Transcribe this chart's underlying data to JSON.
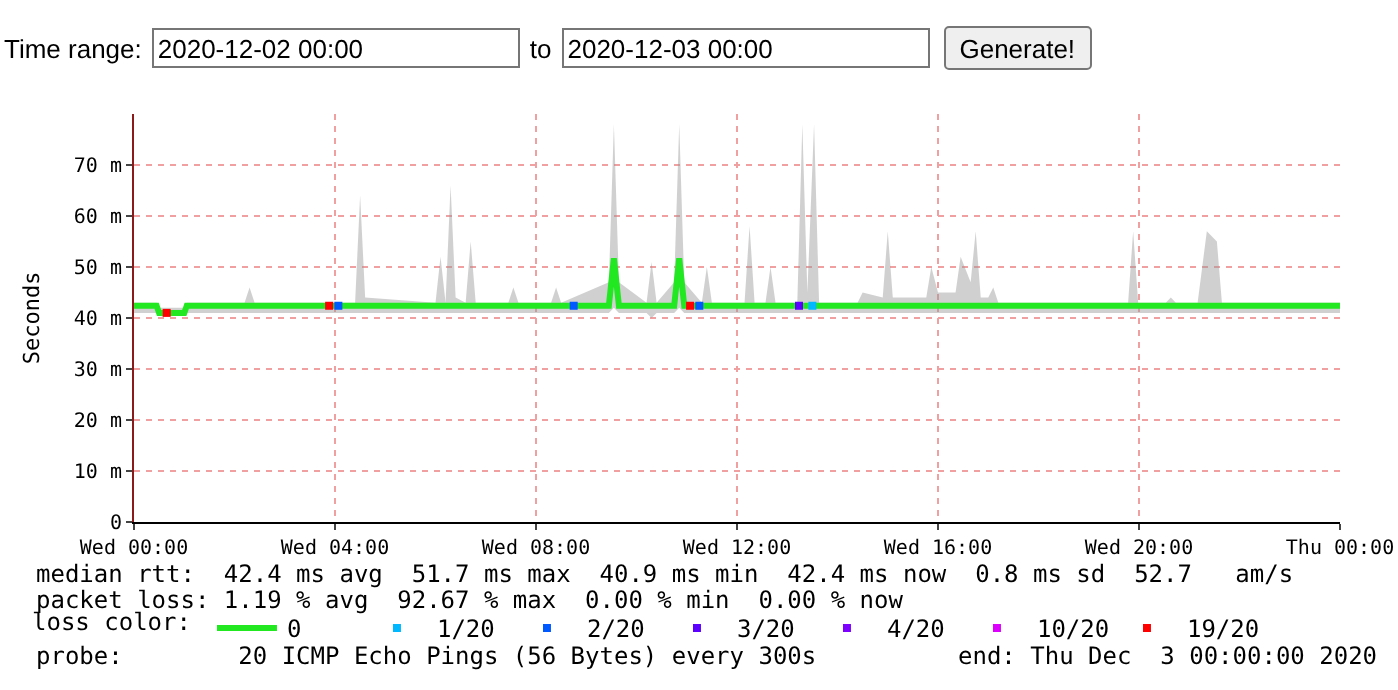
{
  "chart_data": {
    "type": "line",
    "ylabel": "Seconds",
    "xlim": [
      "2020-12-02T00:00",
      "2020-12-03T00:00"
    ],
    "xticks": [
      {
        "value": "2020-12-02T00:00",
        "label": "Wed 00:00"
      },
      {
        "value": "2020-12-02T04:00",
        "label": "Wed 04:00"
      },
      {
        "value": "2020-12-02T08:00",
        "label": "Wed 08:00"
      },
      {
        "value": "2020-12-02T12:00",
        "label": "Wed 12:00"
      },
      {
        "value": "2020-12-02T16:00",
        "label": "Wed 16:00"
      },
      {
        "value": "2020-12-02T20:00",
        "label": "Wed 20:00"
      },
      {
        "value": "2020-12-03T00:00",
        "label": "Thu 00:00"
      }
    ],
    "ylim": [
      0,
      80
    ],
    "yticks": [
      0,
      {
        "value": 10,
        "label": "10 m"
      },
      {
        "value": 20,
        "label": "20 m"
      },
      {
        "value": 30,
        "label": "30 m"
      },
      {
        "value": 40,
        "label": "40 m"
      },
      {
        "value": 50,
        "label": "50 m"
      },
      {
        "value": 60,
        "label": "60 m"
      },
      {
        "value": 70,
        "label": "70 m"
      }
    ],
    "grid": true,
    "legend": "bottom left",
    "legend_title": "loss color:",
    "annotations": [
      "Time range:",
      "2020-12-02 00:00",
      "to",
      "2020-12-03 00:00",
      "Generate!",
      "median rtt:  42.4 ms avg  51.7 ms max  40.9 ms min  42.4 ms now  0.8 ms sd  52.7   am/s",
      "packet loss: 1.19 % avg  92.67 % max  0.00 % min  0.00 % now",
      "probe:        20 ICMP Echo Pings (56 Bytes) every 300s",
      "end: Thu Dec  3 00:00:00 2020"
    ],
    "series": [
      {
        "name": "0",
        "color": "#22e822",
        "x": [
          "2020-12-02T00:00",
          "2020-12-02T00:27",
          "2020-12-02T00:30",
          "2020-12-02T01:00",
          "2020-12-02T01:03",
          "2020-12-02T02:12",
          "2020-12-02T02:18",
          "2020-12-02T02:24",
          "2020-12-02T04:24",
          "2020-12-02T04:30",
          "2020-12-02T04:36",
          "2020-12-02T06:00",
          "2020-12-02T06:06",
          "2020-12-02T06:12",
          "2020-12-02T06:18",
          "2020-12-02T06:24",
          "2020-12-02T06:36",
          "2020-12-02T06:42",
          "2020-12-02T06:48",
          "2020-12-02T07:27",
          "2020-12-02T07:33",
          "2020-12-02T07:39",
          "2020-12-02T08:18",
          "2020-12-02T08:24",
          "2020-12-02T08:30",
          "2020-12-02T09:27",
          "2020-12-02T09:33",
          "2020-12-02T09:39",
          "2020-12-02T10:12",
          "2020-12-02T10:18",
          "2020-12-02T10:24",
          "2020-12-02T10:45",
          "2020-12-02T10:51",
          "2020-12-02T10:57",
          "2020-12-02T11:18",
          "2020-12-02T11:24",
          "2020-12-02T11:30",
          "2020-12-02T12:09",
          "2020-12-02T12:15",
          "2020-12-02T12:21",
          "2020-12-02T12:34",
          "2020-12-02T12:40",
          "2020-12-02T12:46",
          "2020-12-02T13:12",
          "2020-12-02T13:18",
          "2020-12-02T13:24",
          "2020-12-02T13:32",
          "2020-12-02T13:38",
          "2020-12-02T14:24",
          "2020-12-02T14:30",
          "2020-12-02T14:54",
          "2020-12-02T15:00",
          "2020-12-02T15:06",
          "2020-12-02T15:46",
          "2020-12-02T15:52",
          "2020-12-02T16:00",
          "2020-12-02T16:21",
          "2020-12-02T16:27",
          "2020-12-02T16:39",
          "2020-12-02T16:45",
          "2020-12-02T16:51",
          "2020-12-02T17:00",
          "2020-12-02T17:06",
          "2020-12-02T17:12",
          "2020-12-02T19:47",
          "2020-12-02T19:53",
          "2020-12-02T19:59",
          "2020-12-02T20:32",
          "2020-12-02T20:38",
          "2020-12-02T20:44",
          "2020-12-02T21:10",
          "2020-12-02T21:21",
          "2020-12-02T21:33",
          "2020-12-02T21:39",
          "2020-12-03T00:00"
        ],
        "values": [
          42.4,
          42.4,
          41,
          41,
          42.4,
          42.4,
          42.4,
          42.4,
          42.4,
          42.4,
          42.4,
          42.4,
          42.4,
          42.4,
          42.4,
          42.4,
          42.4,
          42.4,
          42.4,
          42.4,
          42.4,
          42.4,
          42.4,
          42.4,
          42.4,
          42.4,
          51.7,
          42.4,
          42.4,
          42.4,
          42.4,
          42.4,
          51.7,
          42.4,
          42.4,
          42.4,
          42.4,
          42.4,
          42.4,
          42.4,
          42.4,
          42.4,
          42.4,
          42.4,
          42.4,
          42.4,
          42.4,
          42.4,
          42.4,
          42.4,
          42.4,
          42.4,
          42.4,
          42.4,
          42.4,
          42.4,
          42.4,
          42.4,
          42.4,
          42.4,
          42.4,
          42.4,
          42.4,
          42.4,
          42.4,
          42.4,
          42.4,
          42.4,
          42.4,
          42.4,
          42.4,
          42.4,
          42.4,
          42.4,
          42.4
        ],
        "lower": [
          41,
          41,
          40.5,
          40.5,
          41,
          41,
          41,
          41,
          41,
          41,
          41,
          41,
          41,
          41,
          41,
          41,
          41,
          41,
          41,
          41,
          41,
          41,
          41,
          41,
          41,
          41,
          42,
          41,
          41,
          40,
          41,
          41,
          42,
          41,
          41,
          41,
          41,
          41,
          41,
          41,
          41,
          41,
          41,
          41,
          41,
          41,
          41,
          41,
          41,
          41,
          41,
          41,
          41,
          41,
          41,
          41,
          41,
          41,
          41,
          41,
          41,
          41,
          41,
          41,
          41,
          41,
          41,
          41,
          41,
          41,
          41,
          41,
          41,
          41,
          41
        ],
        "upper": [
          43,
          43,
          42,
          42,
          43,
          43,
          46,
          43,
          43,
          64,
          44,
          43,
          52,
          43,
          66,
          44,
          43,
          55,
          43,
          43,
          46,
          43,
          43,
          46,
          43,
          47,
          78,
          47,
          43,
          51,
          43,
          47,
          78,
          47,
          43,
          50,
          43,
          43,
          58,
          43,
          43,
          50,
          43,
          43,
          78,
          45,
          78,
          43,
          43,
          45,
          44,
          57,
          44,
          44,
          50,
          45,
          45,
          52,
          47,
          57,
          44,
          44,
          46,
          43,
          43,
          57,
          43,
          43,
          44,
          43,
          43,
          57,
          55,
          43,
          43
        ]
      },
      {
        "name": "1/20",
        "type": "scatter",
        "marker": "square",
        "color": "#00b8ff",
        "x": [
          "2020-12-02T13:30"
        ],
        "values": [
          42.4
        ]
      },
      {
        "name": "2/20",
        "type": "scatter",
        "marker": "square",
        "color": "#0059ff",
        "x": [
          "2020-12-02T04:04",
          "2020-12-02T08:45",
          "2020-12-02T11:15"
        ],
        "values": [
          42.4,
          42.4,
          42.4
        ]
      },
      {
        "name": "3/20",
        "type": "scatter",
        "marker": "square",
        "color": "#5e00ff",
        "x": [
          "2020-12-02T13:14"
        ],
        "values": [
          42.4
        ]
      },
      {
        "name": "4/20",
        "type": "scatter",
        "marker": "square",
        "color": "#7e00ff"
      },
      {
        "name": "10/20",
        "type": "scatter",
        "marker": "square",
        "color": "#dd00ff"
      },
      {
        "name": "19/20",
        "type": "scatter",
        "marker": "square",
        "color": "#ff0000",
        "x": [
          "2020-12-02T00:39",
          "2020-12-02T03:53",
          "2020-12-02T11:04"
        ],
        "values": [
          41,
          42.4,
          42.4
        ]
      }
    ]
  }
}
